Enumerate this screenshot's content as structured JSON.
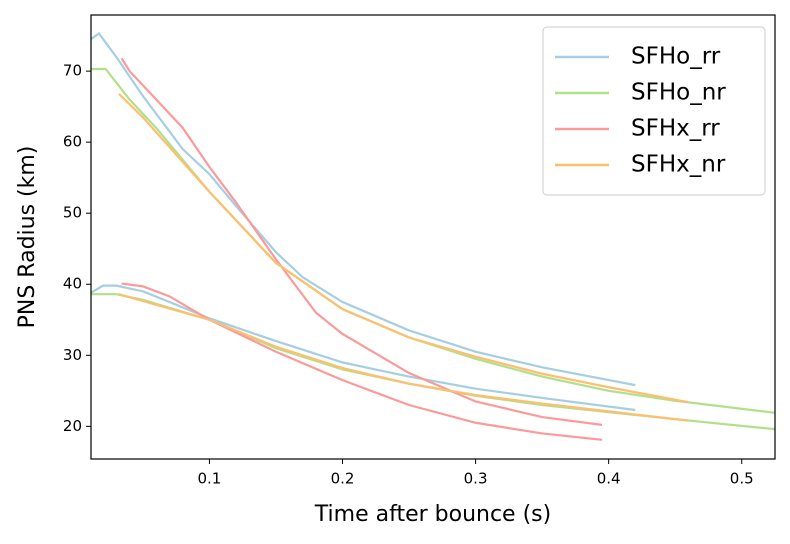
{
  "chart_data": {
    "type": "line",
    "xlabel": "Time after bounce (s)",
    "ylabel": "PNS Radius (km)",
    "xlim": [
      0.011,
      0.525
    ],
    "ylim": [
      15.4,
      77.9
    ],
    "xticks": [
      0.1,
      0.2,
      0.3,
      0.4,
      0.5
    ],
    "yticks": [
      20,
      30,
      40,
      50,
      60,
      70
    ],
    "legend": "upper right",
    "series": [
      {
        "name": "SFHo_rr",
        "color": "#a6cee3",
        "lines": [
          {
            "x": [
              0.011,
              0.017,
              0.03,
              0.05,
              0.07,
              0.08,
              0.1,
              0.12,
              0.15,
              0.17,
              0.2,
              0.25,
              0.3,
              0.35,
              0.42
            ],
            "values": [
              74.5,
              75.3,
              72,
              66.5,
              61.5,
              59,
              55.5,
              51,
              44.5,
              41,
              37.5,
              33.5,
              30.5,
              28.3,
              25.8
            ]
          },
          {
            "x": [
              0.011,
              0.02,
              0.03,
              0.05,
              0.07,
              0.1,
              0.15,
              0.2,
              0.25,
              0.3,
              0.35,
              0.42
            ],
            "values": [
              38.8,
              39.8,
              39.8,
              39,
              37.5,
              35.2,
              32,
              29,
              27,
              25.3,
              24,
              22.3
            ]
          }
        ]
      },
      {
        "name": "SFHo_nr",
        "color": "#b2df8a",
        "lines": [
          {
            "x": [
              0.011,
              0.022,
              0.04,
              0.06,
              0.1,
              0.15,
              0.2,
              0.25,
              0.3,
              0.35,
              0.4,
              0.45,
              0.525
            ],
            "values": [
              70.3,
              70.3,
              66,
              62,
              53,
              43,
              36.5,
              32.5,
              29.5,
              27,
              25,
              23.6,
              21.9
            ]
          },
          {
            "x": [
              0.011,
              0.03,
              0.05,
              0.1,
              0.15,
              0.2,
              0.25,
              0.3,
              0.35,
              0.4,
              0.45,
              0.525
            ],
            "values": [
              38.6,
              38.6,
              37.8,
              35,
              31,
              28,
              26,
              24.3,
              23,
              22,
              21,
              19.6
            ]
          }
        ]
      },
      {
        "name": "SFHx_rr",
        "color": "#fb9a99",
        "lines": [
          {
            "x": [
              0.034,
              0.04,
              0.06,
              0.08,
              0.1,
              0.12,
              0.15,
              0.18,
              0.2,
              0.25,
              0.3,
              0.35,
              0.395
            ],
            "values": [
              71.8,
              70,
              66,
              62,
              56.5,
              51.5,
              43.5,
              36,
              33,
              27.5,
              23.5,
              21.3,
              20.2
            ]
          },
          {
            "x": [
              0.034,
              0.05,
              0.07,
              0.1,
              0.15,
              0.2,
              0.25,
              0.3,
              0.35,
              0.395
            ],
            "values": [
              40.1,
              39.7,
              38.3,
              35,
              30.5,
              26.5,
              23,
              20.5,
              19,
              18.1
            ]
          }
        ]
      },
      {
        "name": "SFHx_nr",
        "color": "#fdbf6f",
        "lines": [
          {
            "x": [
              0.032,
              0.05,
              0.1,
              0.15,
              0.2,
              0.25,
              0.3,
              0.35,
              0.4,
              0.46
            ],
            "values": [
              66.8,
              63.5,
              53,
              43,
              36.5,
              32.5,
              29.8,
              27.4,
              25.5,
              23.4
            ]
          },
          {
            "x": [
              0.032,
              0.1,
              0.15,
              0.2,
              0.25,
              0.3,
              0.35,
              0.4,
              0.46
            ],
            "values": [
              38.6,
              35,
              31.2,
              28.2,
              26,
              24.4,
              23.2,
              22.1,
              20.8
            ]
          }
        ]
      }
    ]
  }
}
